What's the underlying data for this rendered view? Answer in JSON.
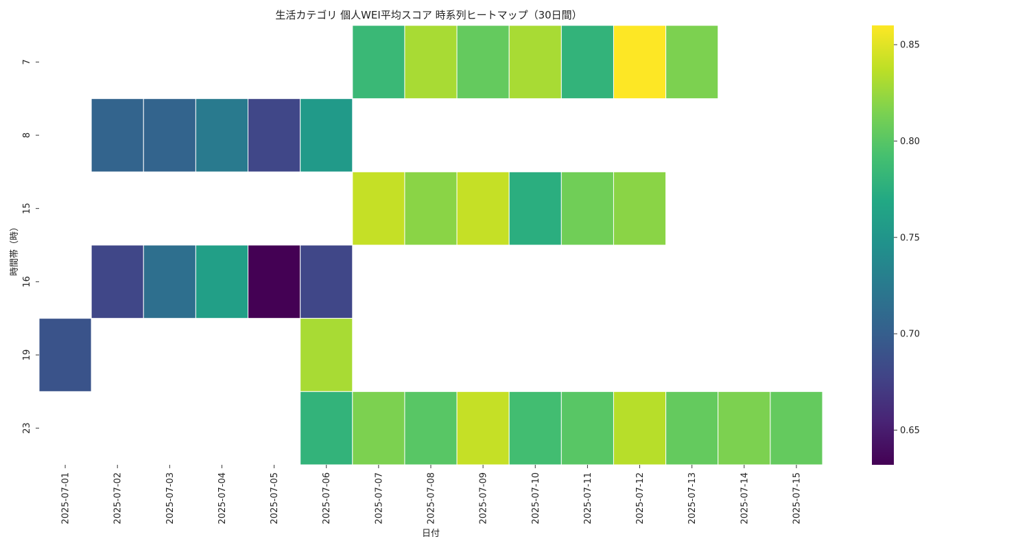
{
  "chart_data": {
    "type": "heatmap",
    "title": "生活カテゴリ 個人WEI平均スコア 時系列ヒートマップ（30日間）",
    "xlabel": "日付",
    "ylabel": "時間帯（時）",
    "x": [
      "2025-07-01",
      "2025-07-02",
      "2025-07-03",
      "2025-07-04",
      "2025-07-05",
      "2025-07-06",
      "2025-07-07",
      "2025-07-08",
      "2025-07-09",
      "2025-07-10",
      "2025-07-11",
      "2025-07-12",
      "2025-07-13",
      "2025-07-14",
      "2025-07-15"
    ],
    "y": [
      "7",
      "8",
      "15",
      "16",
      "19",
      "23"
    ],
    "values": [
      [
        null,
        null,
        null,
        null,
        null,
        null,
        0.785,
        0.83,
        0.805,
        0.83,
        0.78,
        0.86,
        0.815,
        null,
        null
      ],
      [
        null,
        0.705,
        0.705,
        0.725,
        0.68,
        0.755,
        null,
        null,
        null,
        null,
        null,
        null,
        null,
        null,
        null
      ],
      [
        null,
        null,
        null,
        null,
        null,
        null,
        0.84,
        0.82,
        0.84,
        0.775,
        0.81,
        0.82,
        null,
        null,
        null
      ],
      [
        null,
        0.68,
        0.715,
        0.76,
        0.632,
        0.68,
        null,
        null,
        null,
        null,
        null,
        null,
        null,
        null,
        null
      ],
      [
        0.69,
        null,
        null,
        null,
        null,
        0.83,
        null,
        null,
        null,
        null,
        null,
        null,
        null,
        null,
        null
      ],
      [
        null,
        null,
        null,
        null,
        null,
        0.78,
        0.815,
        0.8,
        0.84,
        0.79,
        0.8,
        0.835,
        0.805,
        0.815,
        0.805
      ]
    ],
    "colorscale": "viridis",
    "vmin": 0.632,
    "vmax": 0.86,
    "colorbar_ticks": [
      "0.65",
      "0.70",
      "0.75",
      "0.80",
      "0.85"
    ],
    "grid": false,
    "legend": "right"
  }
}
